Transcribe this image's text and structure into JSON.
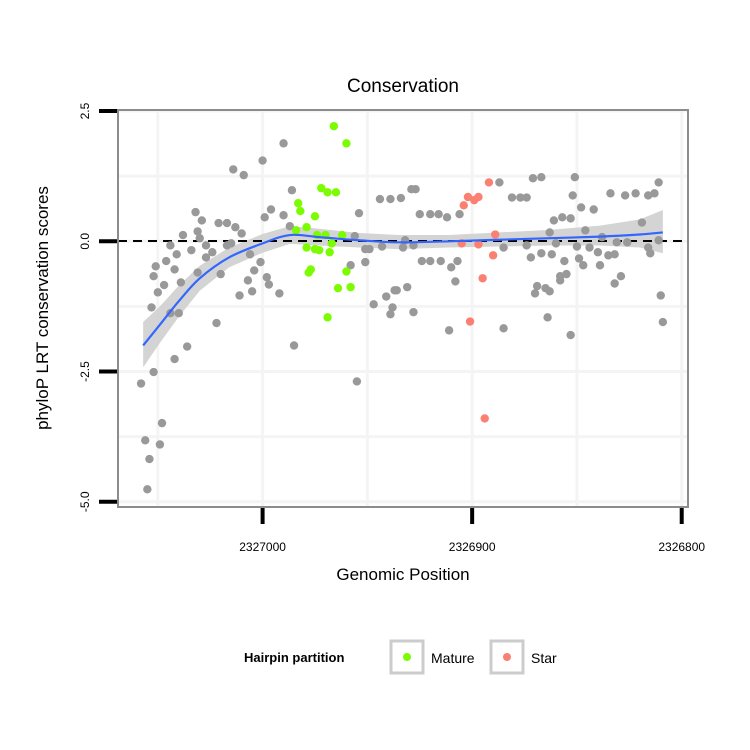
{
  "chart_data": {
    "type": "scatter",
    "title": "Conservation",
    "xlabel": "Genomic Position",
    "ylabel": "phyloP LRT conservation scores",
    "xlim": [
      2327069,
      2326797
    ],
    "x_reversed": true,
    "ylim": [
      -5.1,
      2.52
    ],
    "xticks": [
      2327000,
      2326900,
      2326800
    ],
    "xtick_labels": [
      "2327000",
      "2326900",
      "2326800"
    ],
    "yticks": [
      2.5,
      0.0,
      -2.5,
      -5.0
    ],
    "ytick_labels": [
      "2.5",
      "0.0",
      "-2.5",
      "-5.0"
    ],
    "reference_line": {
      "y": 0,
      "style": "dashed",
      "color": "#000000"
    },
    "grid": true,
    "legend": {
      "title": "Hairpin partition",
      "placement": "bottom",
      "entries": [
        {
          "label": "Mature",
          "color": "#7CFC00"
        },
        {
          "label": "Star",
          "color": "#FA8072"
        }
      ]
    },
    "colors": {
      "other": "#999999",
      "Mature": "#7CFC00",
      "Star": "#FA8072",
      "smooth": "#3366FF",
      "ribbon": "#CCCCCC"
    },
    "series": [
      {
        "name": "Other",
        "points": [
          [
            2326990,
            1.88
          ],
          [
            2327000,
            1.55
          ],
          [
            2327014,
            1.38
          ],
          [
            2327009,
            1.27
          ],
          [
            2326986,
            0.98
          ],
          [
            2326996,
            0.61
          ],
          [
            2326999,
            0.46
          ],
          [
            2326990,
            0.5
          ],
          [
            2327032,
            0.56
          ],
          [
            2327029,
            0.4
          ],
          [
            2327021,
            0.35
          ],
          [
            2327017,
            0.35
          ],
          [
            2327013,
            0.27
          ],
          [
            2327010,
            0.15
          ],
          [
            2327031,
            0.19
          ],
          [
            2327038,
            0.12
          ],
          [
            2327030,
            0.06
          ],
          [
            2327044,
            -0.08
          ],
          [
            2327034,
            -0.17
          ],
          [
            2327027,
            -0.08
          ],
          [
            2327024,
            -0.21
          ],
          [
            2327027,
            -0.31
          ],
          [
            2327017,
            -0.08
          ],
          [
            2327015,
            -0.04
          ],
          [
            2327006,
            -0.25
          ],
          [
            2327001,
            -0.4
          ],
          [
            2327004,
            -0.56
          ],
          [
            2327041,
            -0.25
          ],
          [
            2327046,
            -0.38
          ],
          [
            2327051,
            -0.48
          ],
          [
            2327052,
            -0.67
          ],
          [
            2327042,
            -0.54
          ],
          [
            2327031,
            -0.6
          ],
          [
            2327020,
            -0.63
          ],
          [
            2327047,
            -0.84
          ],
          [
            2327050,
            -0.98
          ],
          [
            2327039,
            -0.79
          ],
          [
            2327007,
            -0.75
          ],
          [
            2326998,
            -0.69
          ],
          [
            2326997,
            -0.83
          ],
          [
            2327005,
            -0.96
          ],
          [
            2327011,
            -1.04
          ],
          [
            2326992,
            -1.0
          ],
          [
            2327053,
            -1.27
          ],
          [
            2327044,
            -1.38
          ],
          [
            2327040,
            -1.38
          ],
          [
            2327022,
            -1.57
          ],
          [
            2327036,
            -2.02
          ],
          [
            2327042,
            -2.26
          ],
          [
            2326985,
            -2.0
          ],
          [
            2327058,
            -2.73
          ],
          [
            2327052,
            -2.51
          ],
          [
            2327048,
            -3.49
          ],
          [
            2327056,
            -3.82
          ],
          [
            2327049,
            -3.9
          ],
          [
            2327054,
            -4.18
          ],
          [
            2327055,
            -4.76
          ],
          [
            2326955,
            -2.69
          ],
          [
            2326954,
            0.54
          ],
          [
            2326958,
            -0.46
          ],
          [
            2326951,
            -0.4
          ],
          [
            2326956,
            0.1
          ],
          [
            2326951,
            -0.15
          ],
          [
            2326949,
            -0.15
          ],
          [
            2326943,
            -0.1
          ],
          [
            2326947,
            -1.21
          ],
          [
            2326941,
            -1.06
          ],
          [
            2326939,
            -1.4
          ],
          [
            2326938,
            -1.27
          ],
          [
            2326937,
            -0.94
          ],
          [
            2326944,
            0.81
          ],
          [
            2326939,
            0.81
          ],
          [
            2326987,
            0.29
          ],
          [
            2326929,
            1.0
          ],
          [
            2326927,
            1.0
          ],
          [
            2326934,
            0.83
          ],
          [
            2326887,
            1.13
          ],
          [
            2326871,
            1.21
          ],
          [
            2326867,
            1.23
          ],
          [
            2326851,
            1.23
          ],
          [
            2326811,
            1.13
          ],
          [
            2326881,
            0.84
          ],
          [
            2326877,
            0.84
          ],
          [
            2326874,
            0.84
          ],
          [
            2326852,
            0.88
          ],
          [
            2326834,
            0.92
          ],
          [
            2326827,
            0.88
          ],
          [
            2326822,
            0.92
          ],
          [
            2326816,
            0.88
          ],
          [
            2326813,
            0.92
          ],
          [
            2326925,
            0.52
          ],
          [
            2326920,
            0.52
          ],
          [
            2326916,
            0.52
          ],
          [
            2326912,
            0.46
          ],
          [
            2326906,
            0.52
          ],
          [
            2326848,
            0.65
          ],
          [
            2326842,
            0.61
          ],
          [
            2326861,
            0.4
          ],
          [
            2326857,
            0.46
          ],
          [
            2326853,
            0.44
          ],
          [
            2326819,
            0.36
          ],
          [
            2326846,
            0.21
          ],
          [
            2326863,
            0.17
          ],
          [
            2326932,
            0.02
          ],
          [
            2326933,
            -0.12
          ],
          [
            2326928,
            -0.08
          ],
          [
            2326885,
            -0.12
          ],
          [
            2326874,
            -0.08
          ],
          [
            2326860,
            -0.04
          ],
          [
            2326850,
            -0.1
          ],
          [
            2326844,
            -0.12
          ],
          [
            2326838,
            0.08
          ],
          [
            2326831,
            -0.02
          ],
          [
            2326826,
            -0.02
          ],
          [
            2326816,
            -0.12
          ],
          [
            2326811,
            0.02
          ],
          [
            2326815,
            -0.23
          ],
          [
            2326840,
            -0.21
          ],
          [
            2326872,
            -0.31
          ],
          [
            2326867,
            -0.23
          ],
          [
            2326862,
            -0.25
          ],
          [
            2326849,
            -0.33
          ],
          [
            2326856,
            -0.38
          ],
          [
            2326847,
            -0.46
          ],
          [
            2326839,
            -0.46
          ],
          [
            2326835,
            -0.27
          ],
          [
            2326832,
            -0.25
          ],
          [
            2326924,
            -0.38
          ],
          [
            2326920,
            -0.38
          ],
          [
            2326915,
            -0.38
          ],
          [
            2326907,
            -0.38
          ],
          [
            2326910,
            -0.5
          ],
          [
            2326908,
            -0.77
          ],
          [
            2326858,
            -0.67
          ],
          [
            2326855,
            -0.63
          ],
          [
            2326858,
            -0.75
          ],
          [
            2326829,
            -0.67
          ],
          [
            2326832,
            -0.81
          ],
          [
            2326936,
            -0.94
          ],
          [
            2326931,
            -0.88
          ],
          [
            2326869,
            -0.86
          ],
          [
            2326865,
            -0.9
          ],
          [
            2326863,
            -0.96
          ],
          [
            2326870,
            -1.0
          ],
          [
            2326810,
            -1.04
          ],
          [
            2326928,
            -1.36
          ],
          [
            2326911,
            -1.71
          ],
          [
            2326885,
            -1.67
          ],
          [
            2326864,
            -1.46
          ],
          [
            2326853,
            -1.8
          ],
          [
            2326809,
            -1.55
          ]
        ]
      },
      {
        "name": "Mature",
        "points": [
          [
            2326966,
            2.21
          ],
          [
            2326960,
            1.88
          ],
          [
            2326972,
            1.02
          ],
          [
            2326969,
            0.94
          ],
          [
            2326965,
            0.94
          ],
          [
            2326983,
            0.73
          ],
          [
            2326982,
            0.58
          ],
          [
            2326975,
            0.48
          ],
          [
            2326984,
            0.21
          ],
          [
            2326979,
            0.27
          ],
          [
            2326974,
            0.12
          ],
          [
            2326970,
            0.12
          ],
          [
            2326962,
            0.12
          ],
          [
            2326967,
            -0.04
          ],
          [
            2326979,
            -0.12
          ],
          [
            2326975,
            -0.15
          ],
          [
            2326973,
            -0.17
          ],
          [
            2326968,
            -0.21
          ],
          [
            2326977,
            -0.54
          ],
          [
            2326978,
            -0.6
          ],
          [
            2326960,
            -0.58
          ],
          [
            2326964,
            -0.9
          ],
          [
            2326958,
            -0.88
          ],
          [
            2326969,
            -1.46
          ]
        ]
      },
      {
        "name": "Star",
        "points": [
          [
            2326892,
            1.13
          ],
          [
            2326902,
            0.85
          ],
          [
            2326897,
            0.85
          ],
          [
            2326899,
            0.79
          ],
          [
            2326904,
            0.69
          ],
          [
            2326889,
            0.13
          ],
          [
            2326905,
            -0.04
          ],
          [
            2326897,
            -0.06
          ],
          [
            2326890,
            -0.27
          ],
          [
            2326895,
            -0.71
          ],
          [
            2326901,
            -1.54
          ],
          [
            2326894,
            -3.4
          ]
        ]
      }
    ],
    "smooth": [
      [
        2327057,
        -2.0,
        -2.42,
        -1.55
      ],
      [
        2327049,
        -1.6,
        -1.95,
        -1.25
      ],
      [
        2327040,
        -1.15,
        -1.45,
        -0.85
      ],
      [
        2327030,
        -0.71,
        -0.95,
        -0.47
      ],
      [
        2327016,
        -0.31,
        -0.5,
        -0.12
      ],
      [
        2327000,
        -0.04,
        -0.22,
        0.14
      ],
      [
        2326987,
        0.12,
        -0.05,
        0.29
      ],
      [
        2326973,
        0.08,
        -0.08,
        0.24
      ],
      [
        2326954,
        0.02,
        -0.12,
        0.16
      ],
      [
        2326935,
        -0.02,
        -0.15,
        0.12
      ],
      [
        2326911,
        0.0,
        -0.12,
        0.12
      ],
      [
        2326887,
        0.03,
        -0.1,
        0.17
      ],
      [
        2326863,
        0.06,
        -0.08,
        0.22
      ],
      [
        2326839,
        0.09,
        -0.08,
        0.3
      ],
      [
        2326820,
        0.13,
        -0.12,
        0.42
      ],
      [
        2326809,
        0.17,
        -0.23,
        0.6
      ]
    ]
  }
}
